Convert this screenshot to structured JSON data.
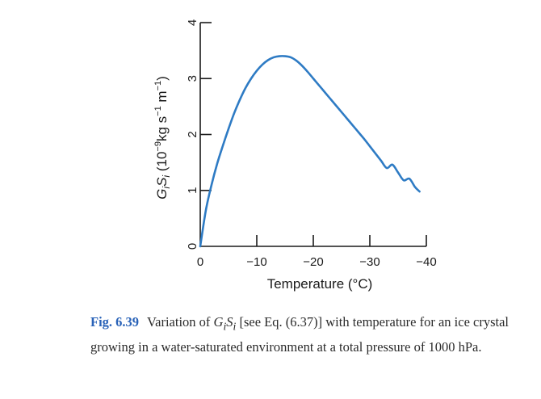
{
  "chart_data": {
    "type": "line",
    "xlabel": "Temperature (°C)",
    "ylabel_parts": {
      "main": "G",
      "sub1": "i",
      "main2": "S",
      "sub2": "i",
      "units_open": " (10",
      "exp1": "−9",
      "units_mid": "kg s",
      "exp2": "−1",
      "units_mid2": " m",
      "exp3": "−1",
      "units_close": ")"
    },
    "xlim": [
      0,
      -40
    ],
    "ylim": [
      0,
      4
    ],
    "x_ticks": [
      0,
      -10,
      -20,
      -30,
      -40
    ],
    "x_tick_labels": [
      "0",
      "−10",
      "−20",
      "−30",
      "−40"
    ],
    "y_ticks": [
      0,
      1,
      2,
      3,
      4
    ],
    "y_tick_labels": [
      "0",
      "1",
      "2",
      "3",
      "4"
    ],
    "series": [
      {
        "name": "GiSi",
        "color": "#2e7bc4",
        "x": [
          0,
          -1,
          -2,
          -3,
          -4,
          -5,
          -6,
          -7,
          -8,
          -9,
          -10,
          -11,
          -12,
          -13,
          -14,
          -15,
          -16,
          -17,
          -18,
          -19,
          -20,
          -21,
          -22,
          -23,
          -24,
          -25,
          -26,
          -27,
          -28,
          -29,
          -30,
          -31,
          -32,
          -33,
          -34,
          -35,
          -36,
          -37,
          -38,
          -38.8
        ],
        "y": [
          0,
          0.65,
          1.1,
          1.48,
          1.8,
          2.1,
          2.38,
          2.62,
          2.83,
          3.0,
          3.14,
          3.25,
          3.33,
          3.38,
          3.4,
          3.4,
          3.38,
          3.32,
          3.23,
          3.12,
          3.0,
          2.88,
          2.76,
          2.64,
          2.52,
          2.4,
          2.28,
          2.16,
          2.04,
          1.92,
          1.79,
          1.66,
          1.53,
          1.4,
          1.46,
          1.32,
          1.18,
          1.21,
          1.06,
          0.98
        ]
      }
    ]
  },
  "caption": {
    "label": "Fig. 6.39",
    "text_before": "Variation of ",
    "sym1": "G",
    "sym1_sub": "i",
    "sym2": "S",
    "sym2_sub": "i",
    "text_after": " [see Eq. (6.37)] with temperature for an ice crystal growing in a water-saturated environment at a total pressure of 1000 hPa."
  }
}
